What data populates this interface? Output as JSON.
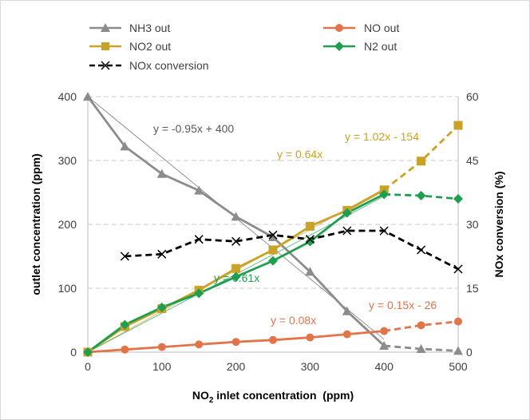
{
  "chart_data": {
    "type": "line",
    "x": [
      0,
      50,
      100,
      150,
      200,
      250,
      300,
      350,
      400,
      450,
      500
    ],
    "xlabel": {
      "prefix": "NO",
      "sub": "2",
      "suffix": " inlet concentration  (ppm)"
    },
    "ylabel": "outlet concentration (ppm)",
    "y2label": "NOx conversion (%)",
    "xlim": [
      0,
      500
    ],
    "ylim": [
      0,
      400
    ],
    "y2lim": [
      0,
      60
    ],
    "xticks": [
      "0",
      "100",
      "200",
      "300",
      "400",
      "500"
    ],
    "yticks": [
      "0",
      "100",
      "200",
      "300",
      "400"
    ],
    "y2ticks": [
      "0",
      "15",
      "30",
      "45",
      "60"
    ],
    "grid": true,
    "legend_position": "top",
    "series": [
      {
        "name": "NH3 out",
        "axis": "left",
        "color": "#8c8c8c",
        "marker": "triangle",
        "values": [
          400,
          322,
          279,
          253,
          212,
          180,
          126,
          64,
          10,
          5,
          2
        ],
        "dashed_from_index": 8
      },
      {
        "name": "NO out",
        "axis": "left",
        "color": "#e2744a",
        "marker": "circle",
        "values": [
          0,
          4,
          8,
          12,
          16,
          19,
          23,
          28,
          33,
          42,
          48
        ],
        "dashed_from_index": 8
      },
      {
        "name": "NO2 out",
        "axis": "left",
        "color": "#c9a227",
        "marker": "square",
        "values": [
          0,
          40,
          68,
          97,
          131,
          160,
          197,
          222,
          254,
          299,
          355
        ],
        "dashed_from_index": 8
      },
      {
        "name": "N2 out",
        "axis": "left",
        "color": "#1f9e50",
        "marker": "diamond",
        "values": [
          0,
          43,
          70,
          92,
          118,
          143,
          173,
          218,
          247,
          245,
          240
        ],
        "dashed_from_index": 8
      },
      {
        "name": "NOx conversion",
        "axis": "right",
        "color": "#000000",
        "marker": "x",
        "values": [
          null,
          22.5,
          23,
          26.5,
          26,
          27.5,
          26.5,
          28.5,
          28.5,
          24,
          19.5
        ],
        "dashed_from_index": 0
      }
    ],
    "trendlines": [
      {
        "label": "y = -0.95x + 400",
        "color": "#595959",
        "x": [
          0,
          400
        ],
        "y": [
          400,
          20
        ]
      },
      {
        "label": "y = 1.02x - 154",
        "color": "#c9a227",
        "x": [],
        "y": []
      },
      {
        "label": "y = 0.64x",
        "color": "#c9a227",
        "x": [
          0,
          400
        ],
        "y": [
          0,
          256
        ]
      },
      {
        "label": "y = 0.61x",
        "color": "#1f9e50",
        "x": [
          0,
          400
        ],
        "y": [
          0,
          244
        ]
      },
      {
        "label": "y = 0.08x",
        "color": "#e2744a",
        "x": [],
        "y": []
      },
      {
        "label": "y = 0.15x - 26",
        "color": "#e2744a",
        "x": [],
        "y": []
      }
    ]
  }
}
